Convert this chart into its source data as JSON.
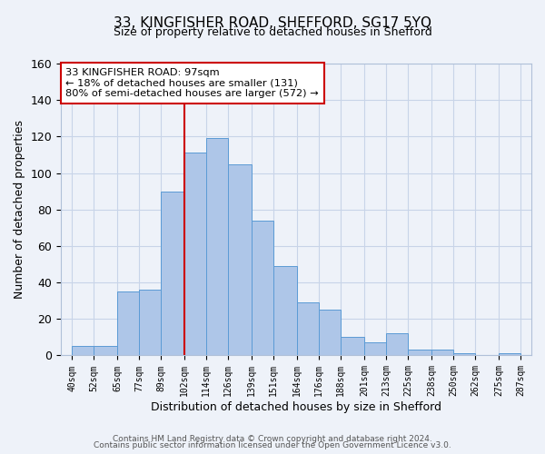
{
  "title1": "33, KINGFISHER ROAD, SHEFFORD, SG17 5YQ",
  "title2": "Size of property relative to detached houses in Shefford",
  "xlabel": "Distribution of detached houses by size in Shefford",
  "ylabel": "Number of detached properties",
  "bar_left_edges": [
    40,
    52,
    65,
    77,
    89,
    102,
    114,
    126,
    139,
    151,
    164,
    176,
    188,
    201,
    213,
    225,
    238,
    250,
    262,
    275
  ],
  "bar_widths": [
    12,
    13,
    12,
    12,
    13,
    12,
    12,
    13,
    12,
    13,
    12,
    12,
    13,
    12,
    12,
    13,
    12,
    12,
    13,
    12
  ],
  "bar_heights": [
    5,
    5,
    35,
    36,
    90,
    111,
    119,
    105,
    74,
    49,
    29,
    25,
    10,
    7,
    12,
    3,
    3,
    1,
    0,
    1
  ],
  "bar_color": "#aec6e8",
  "bar_edge_color": "#5b9bd5",
  "tick_labels": [
    "40sqm",
    "52sqm",
    "65sqm",
    "77sqm",
    "89sqm",
    "102sqm",
    "114sqm",
    "126sqm",
    "139sqm",
    "151sqm",
    "164sqm",
    "176sqm",
    "188sqm",
    "201sqm",
    "213sqm",
    "225sqm",
    "238sqm",
    "250sqm",
    "262sqm",
    "275sqm",
    "287sqm"
  ],
  "tick_positions": [
    40,
    52,
    65,
    77,
    89,
    102,
    114,
    126,
    139,
    151,
    164,
    176,
    188,
    201,
    213,
    225,
    238,
    250,
    262,
    275,
    287
  ],
  "vline_x": 102,
  "vline_color": "#cc0000",
  "ylim": [
    0,
    160
  ],
  "yticks": [
    0,
    20,
    40,
    60,
    80,
    100,
    120,
    140,
    160
  ],
  "xlim": [
    34,
    293
  ],
  "annotation_title": "33 KINGFISHER ROAD: 97sqm",
  "annotation_line1": "← 18% of detached houses are smaller (131)",
  "annotation_line2": "80% of semi-detached houses are larger (572) →",
  "footer1": "Contains HM Land Registry data © Crown copyright and database right 2024.",
  "footer2": "Contains public sector information licensed under the Open Government Licence v3.0.",
  "bg_color": "#eef2f9",
  "grid_color": "#c8d4e8"
}
